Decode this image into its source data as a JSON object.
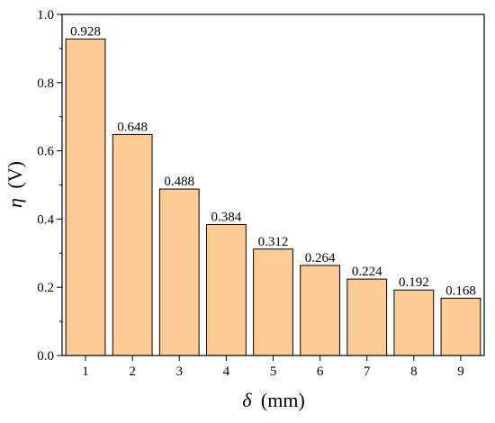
{
  "chart_data": {
    "type": "bar",
    "categories": [
      "1",
      "2",
      "3",
      "4",
      "5",
      "6",
      "7",
      "8",
      "9"
    ],
    "values": [
      0.928,
      0.648,
      0.488,
      0.384,
      0.312,
      0.264,
      0.224,
      0.192,
      0.168
    ],
    "value_labels": [
      "0.928",
      "0.648",
      "0.488",
      "0.384",
      "0.312",
      "0.264",
      "0.224",
      "0.192",
      "0.168"
    ],
    "xlabel": {
      "symbol": "δ",
      "unit": "(mm)"
    },
    "ylabel": {
      "symbol": "η",
      "unit": "(V)"
    },
    "ylim": [
      0,
      1.0
    ],
    "yticks": [
      0.0,
      0.2,
      0.4,
      0.6,
      0.8,
      1.0
    ],
    "ytick_labels": [
      "0.0",
      "0.2",
      "0.4",
      "0.6",
      "0.8",
      "1.0"
    ],
    "bar_color": "#FDCC96",
    "grid": false,
    "legend": "none"
  }
}
